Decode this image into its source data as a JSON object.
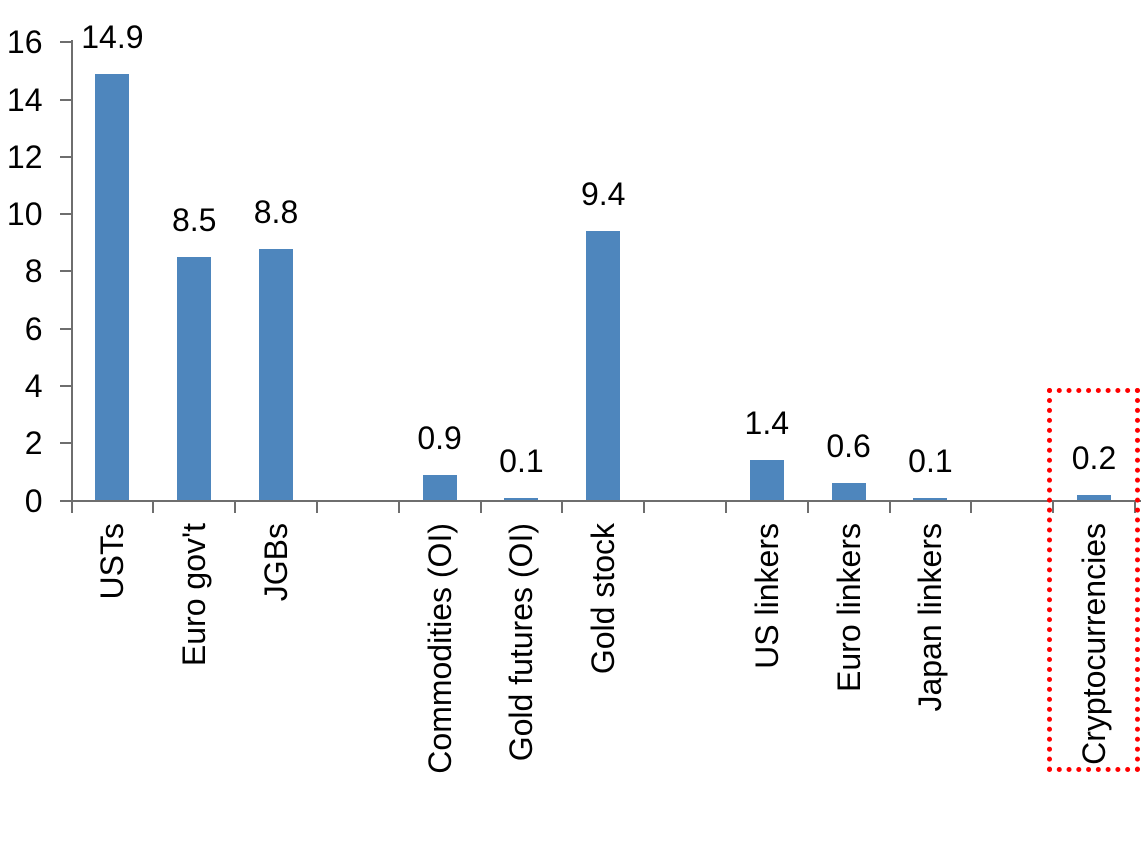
{
  "chart_data": {
    "type": "bar",
    "categories": [
      "USTs",
      "Euro gov't",
      "JGBs",
      "Commodities (OI)",
      "Gold futures (OI)",
      "Gold stock",
      "US linkers",
      "Euro linkers",
      "Japan linkers",
      "Cryptocurrencies"
    ],
    "values": [
      14.9,
      8.5,
      8.8,
      0.9,
      0.1,
      9.4,
      1.4,
      0.6,
      0.1,
      0.2
    ],
    "data_labels": [
      "14.9",
      "8.5",
      "8.8",
      "0.9",
      "0.1",
      "9.4",
      "1.4",
      "0.6",
      "0.1",
      "0.2"
    ],
    "groups": [
      [
        "USTs",
        "Euro gov't",
        "JGBs"
      ],
      [
        "Commodities (OI)",
        "Gold futures (OI)",
        "Gold stock"
      ],
      [
        "US linkers",
        "Euro linkers",
        "Japan linkers"
      ],
      [
        "Cryptocurrencies"
      ]
    ],
    "slot_index": [
      0,
      1,
      2,
      4,
      5,
      6,
      8,
      9,
      10,
      12
    ],
    "num_slots": 13,
    "title": "",
    "xlabel": "",
    "ylabel": "",
    "ylim": [
      0,
      16
    ],
    "ytick_interval": 2,
    "ytick_labels": [
      "0",
      "2",
      "4",
      "6",
      "8",
      "10",
      "12",
      "14",
      "16"
    ],
    "grid": false,
    "legend": "none",
    "x_label_rotation_deg": -90,
    "bar_color": "#4e86bd",
    "axis_color": "#6e6e6e",
    "text_color": "#000000",
    "highlight": {
      "category": "Cryptocurrencies",
      "shape": "dotted-rectangle",
      "color": "#ff0000"
    }
  }
}
